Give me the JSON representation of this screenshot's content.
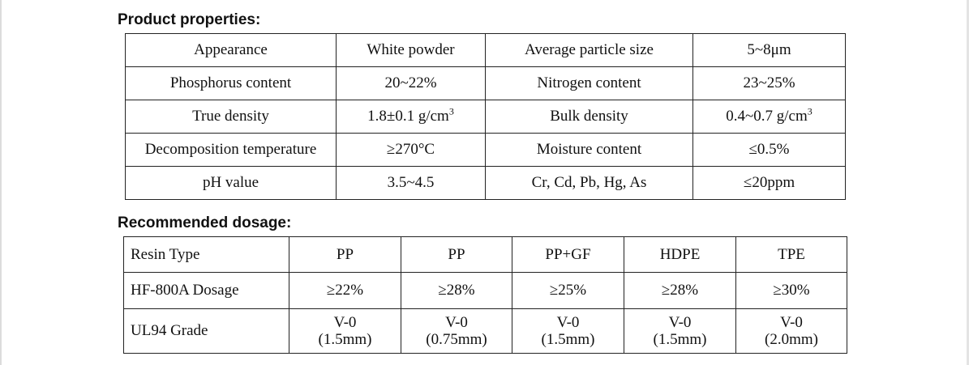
{
  "headings": {
    "properties": "Product properties:",
    "dosage": "Recommended dosage:"
  },
  "properties_table": [
    [
      "Appearance",
      "White powder",
      "Average particle size",
      "5~8μm"
    ],
    [
      "Phosphorus content",
      "20~22%",
      "Nitrogen content",
      "23~25%"
    ],
    [
      "True density",
      "1.8±0.1 g/cm",
      "Bulk density",
      "0.4~0.7 g/cm"
    ],
    [
      "Decomposition temperature",
      "≥270°C",
      "Moisture content",
      "≤0.5%"
    ],
    [
      "pH value",
      "3.5~4.5",
      "Cr, Cd, Pb, Hg, As",
      "≤20ppm"
    ]
  ],
  "density_exponent": "3",
  "dosage_table": {
    "resin_row": {
      "label": "Resin Type",
      "values": [
        "PP",
        "PP",
        "PP+GF",
        "HDPE",
        "TPE"
      ]
    },
    "dosage_row": {
      "label": "HF-800A Dosage",
      "values": [
        "≥22%",
        "≥28%",
        "≥25%",
        "≥28%",
        "≥30%"
      ]
    },
    "grade_row": {
      "label": "UL94 Grade",
      "grades": [
        "V-0",
        "V-0",
        "V-0",
        "V-0",
        "V-0"
      ],
      "thickness": [
        "(1.5mm)",
        "(0.75mm)",
        "(1.5mm)",
        "(1.5mm)",
        "(2.0mm)"
      ]
    }
  }
}
